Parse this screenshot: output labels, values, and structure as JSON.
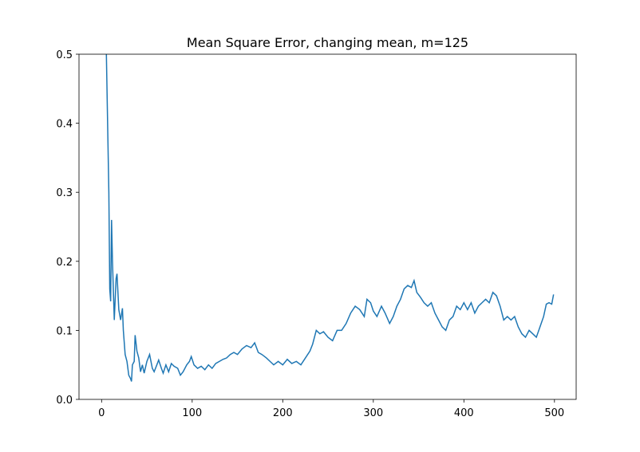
{
  "chart_data": {
    "type": "line",
    "title": "Mean Square Error, changing mean, m=125",
    "x": [
      5,
      8,
      9,
      10,
      11,
      12,
      14,
      16,
      17,
      19,
      21,
      23,
      24,
      26,
      28,
      30,
      32,
      33,
      34,
      36,
      37,
      39,
      41,
      43,
      45,
      47,
      50,
      53,
      56,
      58,
      61,
      63,
      66,
      68,
      71,
      74,
      77,
      80,
      84,
      87,
      90,
      94,
      97,
      99,
      102,
      106,
      110,
      114,
      118,
      122,
      126,
      130,
      134,
      138,
      142,
      146,
      150,
      155,
      160,
      165,
      169,
      173,
      177,
      182,
      186,
      190,
      195,
      200,
      205,
      210,
      215,
      220,
      225,
      230,
      233,
      237,
      241,
      245,
      250,
      255,
      260,
      265,
      270,
      275,
      280,
      285,
      290,
      293,
      297,
      300,
      304,
      309,
      313,
      318,
      322,
      326,
      330,
      334,
      338,
      342,
      345,
      348,
      352,
      356,
      360,
      364,
      368,
      372,
      376,
      380,
      384,
      388,
      392,
      396,
      400,
      404,
      408,
      412,
      416,
      420,
      424,
      428,
      432,
      436,
      440,
      444,
      448,
      452,
      456,
      460,
      464,
      468,
      472,
      476,
      480,
      484,
      488,
      491,
      494,
      497,
      499
    ],
    "series": [
      {
        "color": "#1f77b4",
        "values": [
          0.52,
          0.3,
          0.16,
          0.142,
          0.26,
          0.2,
          0.115,
          0.175,
          0.182,
          0.13,
          0.115,
          0.132,
          0.1,
          0.065,
          0.055,
          0.035,
          0.03,
          0.026,
          0.05,
          0.055,
          0.093,
          0.07,
          0.06,
          0.04,
          0.05,
          0.038,
          0.055,
          0.065,
          0.045,
          0.04,
          0.05,
          0.057,
          0.045,
          0.038,
          0.05,
          0.04,
          0.052,
          0.048,
          0.045,
          0.035,
          0.04,
          0.05,
          0.055,
          0.062,
          0.05,
          0.045,
          0.048,
          0.043,
          0.05,
          0.045,
          0.052,
          0.055,
          0.058,
          0.06,
          0.065,
          0.068,
          0.065,
          0.073,
          0.078,
          0.075,
          0.082,
          0.068,
          0.065,
          0.06,
          0.055,
          0.05,
          0.055,
          0.05,
          0.058,
          0.052,
          0.055,
          0.05,
          0.06,
          0.07,
          0.08,
          0.1,
          0.095,
          0.098,
          0.09,
          0.085,
          0.1,
          0.1,
          0.11,
          0.125,
          0.135,
          0.13,
          0.12,
          0.145,
          0.14,
          0.128,
          0.12,
          0.135,
          0.125,
          0.11,
          0.12,
          0.135,
          0.145,
          0.16,
          0.165,
          0.162,
          0.172,
          0.155,
          0.148,
          0.14,
          0.135,
          0.14,
          0.125,
          0.115,
          0.105,
          0.1,
          0.115,
          0.12,
          0.135,
          0.13,
          0.14,
          0.13,
          0.14,
          0.125,
          0.135,
          0.14,
          0.145,
          0.14,
          0.155,
          0.15,
          0.135,
          0.115,
          0.12,
          0.115,
          0.12,
          0.105,
          0.095,
          0.09,
          0.1,
          0.095,
          0.09,
          0.105,
          0.12,
          0.138,
          0.14,
          0.138,
          0.152
        ]
      }
    ],
    "xlim": [
      -24.95,
      523.95
    ],
    "xticks": [
      0,
      100,
      200,
      300,
      400,
      500
    ],
    "ylim": [
      0,
      0.5
    ],
    "yticks": [
      {
        "value": 0,
        "label": "0.0"
      },
      0.1,
      0.2,
      0.3,
      0.4,
      0.5
    ]
  }
}
